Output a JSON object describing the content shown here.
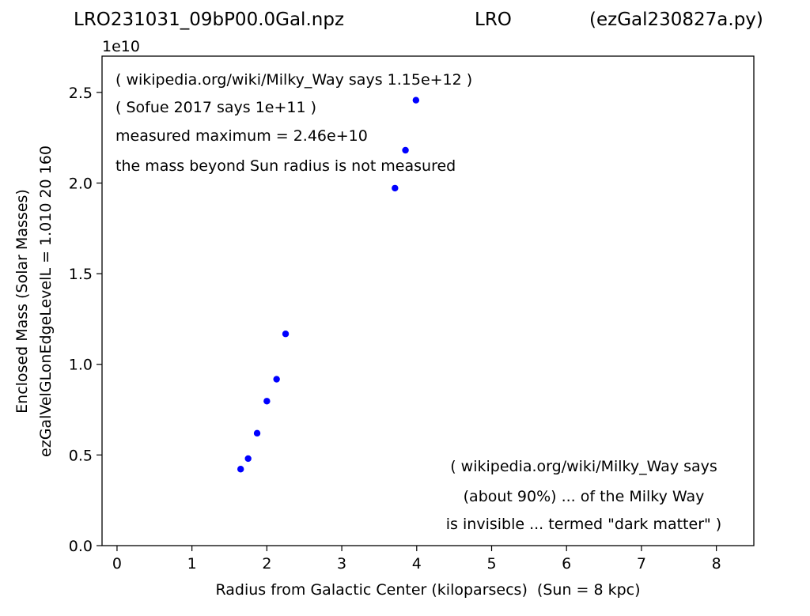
{
  "header": {
    "left": "LRO231031_09bP00.0Gal.npz",
    "center": "LRO",
    "right": "(ezGal230827a.py)"
  },
  "chart_data": {
    "type": "scatter",
    "x": [
      1.65,
      1.75,
      1.87,
      2.0,
      2.13,
      2.25,
      3.71,
      3.85,
      3.99
    ],
    "y": [
      4220000000.0,
      4800000000.0,
      6200000000.0,
      7970000000.0,
      9180000000.0,
      11680000000.0,
      19720000000.0,
      21810000000.0,
      24570000000.0
    ],
    "color": "#0000ff",
    "xlabel": "Radius from Galactic Center (kiloparsecs)  (Sun = 8 kpc)",
    "ylabel_line1": "Enclosed Mass (Solar Masses)",
    "ylabel_line2": "ezGalVelGLonEdgeLevelL = 1.010  20  160",
    "y_offset_label": "1e10",
    "xlim": [
      -0.2,
      8.5
    ],
    "ylim": [
      0,
      27000000000.0
    ],
    "xticks": [
      "0",
      "1",
      "2",
      "3",
      "4",
      "5",
      "6",
      "7",
      "8"
    ],
    "yticks": [
      "0.0",
      "0.5",
      "1.0",
      "1.5",
      "2.0",
      "2.5"
    ],
    "grid": false,
    "annotations_top_left": [
      "( wikipedia.org/wiki/Milky_Way says 1.15e+12 )",
      "( Sofue 2017 says 1e+11 )",
      "measured maximum = 2.46e+10",
      "the mass beyond Sun radius is not measured"
    ],
    "annotations_bottom_right": [
      "( wikipedia.org/wiki/Milky_Way says",
      "(about 90%) ... of the Milky Way",
      "is invisible ... termed \"dark matter\" )"
    ]
  }
}
